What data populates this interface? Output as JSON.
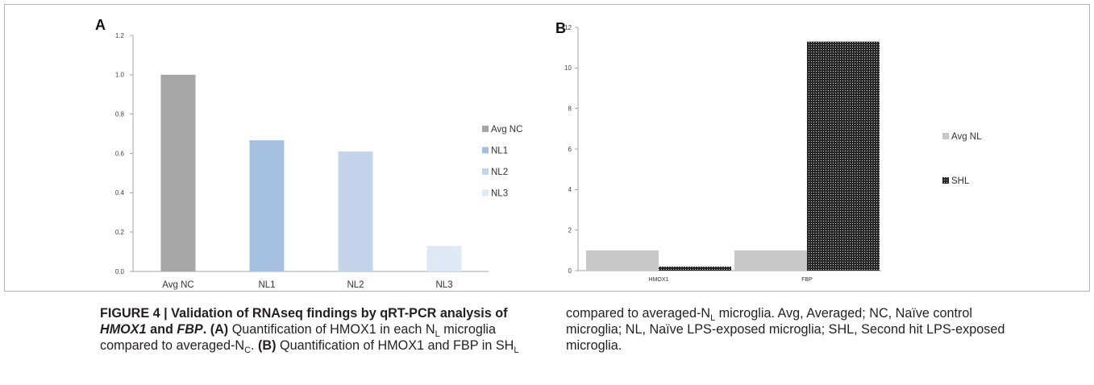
{
  "caption": {
    "left": [
      [
        {
          "text": "FIGURE 4 | Validation of RNAseq findings by qRT-PCR analysis of",
          "bold": true
        }
      ],
      [
        {
          "text": "HMOX1",
          "bold": true,
          "italic": true
        },
        {
          "text": " and ",
          "bold": true
        },
        {
          "text": "FBP",
          "bold": true,
          "italic": true
        },
        {
          "text": ". (A)",
          "bold": true
        },
        {
          "text": " Quantification of HMOX1 in each N"
        },
        {
          "text": "L",
          "sub": true
        },
        {
          "text": " microglia"
        }
      ],
      [
        {
          "text": "compared to averaged-N"
        },
        {
          "text": "C",
          "sub": true
        },
        {
          "text": ". "
        },
        {
          "text": "(B)",
          "bold": true
        },
        {
          "text": " Quantification of HMOX1 and FBP in SH"
        },
        {
          "text": "L",
          "sub": true
        }
      ]
    ],
    "right": [
      [
        {
          "text": "compared to averaged-N"
        },
        {
          "text": "L",
          "sub": true
        },
        {
          "text": " microglia. Avg, Averaged; NC, Naïve control"
        }
      ],
      [
        {
          "text": "microglia; NL, Naïve LPS-exposed microglia; SHL, Second hit LPS-exposed"
        }
      ],
      [
        {
          "text": "microglia."
        }
      ]
    ]
  },
  "chart_data": [
    {
      "panel_label": "A",
      "type": "bar",
      "categories": [
        "Avg NC",
        "NL1",
        "NL2",
        "NL3"
      ],
      "values": [
        1.0,
        0.667,
        0.61,
        0.13
      ],
      "bar_colors": [
        "#a6a6a6",
        "#a5c0e1",
        "#c3d3ea",
        "#dfe8f4"
      ],
      "yticks": [
        "0.0",
        "0.2",
        "0.4",
        "0.6",
        "0.8",
        "1.0",
        "1.2"
      ],
      "ylim": [
        0,
        1.2
      ],
      "grid": false,
      "legend": {
        "position": "right",
        "entries": [
          "Avg NC",
          "NL1",
          "NL2",
          "NL3"
        ]
      }
    },
    {
      "panel_label": "B",
      "type": "bar",
      "categories": [
        "HMOX1",
        "FBP"
      ],
      "series": [
        {
          "name": "Avg NL",
          "values": [
            1.0,
            1.0
          ],
          "color": "#c8c8c8"
        },
        {
          "name": "SHL",
          "values": [
            0.2,
            11.3
          ],
          "color": "#262626",
          "pattern": "dots"
        }
      ],
      "yticks": [
        "0",
        "2",
        "4",
        "6",
        "8",
        "10",
        "12"
      ],
      "ylim": [
        0,
        12
      ],
      "grid": false,
      "legend": {
        "position": "right"
      }
    }
  ]
}
